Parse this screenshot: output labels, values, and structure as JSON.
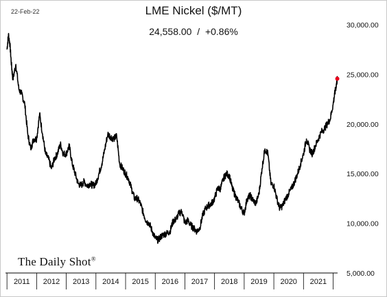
{
  "header": {
    "date": "22-Feb-22",
    "title": "LME Nickel ($/MT)",
    "last_value": "24,558.00",
    "separator": "/",
    "change": "+0.86%"
  },
  "branding": {
    "logo_text": "The Daily Shot",
    "logo_mark": "®"
  },
  "colors": {
    "line": "#000000",
    "last_point": "#e8001c",
    "axis": "#000000",
    "background": "#ffffff"
  },
  "chart_data": {
    "type": "line",
    "title": "LME Nickel ($/MT)",
    "xlabel": "",
    "ylabel": "",
    "xlim": [
      2010.95,
      2022.15
    ],
    "ylim": [
      5000,
      30000
    ],
    "grid": false,
    "y_axis_side": "right",
    "y_ticks": [
      5000,
      10000,
      15000,
      20000,
      25000,
      30000
    ],
    "y_tick_labels": [
      "5,000.00",
      "10,000.00",
      "15,000.00",
      "20,000.00",
      "25,000.00",
      "30,000.00"
    ],
    "x_tick_labels": [
      "2011",
      "2012",
      "2013",
      "2014",
      "2015",
      "2016",
      "2017",
      "2018",
      "2019",
      "2020",
      "2021"
    ],
    "series": [
      {
        "x": [
          2011.0,
          2011.05,
          2011.1,
          2011.15,
          2011.2,
          2011.3,
          2011.4,
          2011.5,
          2011.6,
          2011.7,
          2011.8,
          2011.9,
          2012.0,
          2012.1,
          2012.2,
          2012.3,
          2012.4,
          2012.5,
          2012.6,
          2012.7,
          2012.8,
          2012.9,
          2013.0,
          2013.1,
          2013.2,
          2013.3,
          2013.4,
          2013.5,
          2013.6,
          2013.7,
          2013.8,
          2013.9,
          2014.0,
          2014.1,
          2014.2,
          2014.3,
          2014.4,
          2014.5,
          2014.6,
          2014.7,
          2014.8,
          2014.9,
          2015.0,
          2015.1,
          2015.2,
          2015.3,
          2015.4,
          2015.5,
          2015.6,
          2015.7,
          2015.8,
          2015.9,
          2016.0,
          2016.1,
          2016.2,
          2016.3,
          2016.4,
          2016.5,
          2016.6,
          2016.7,
          2016.8,
          2016.9,
          2017.0,
          2017.1,
          2017.2,
          2017.3,
          2017.4,
          2017.5,
          2017.6,
          2017.7,
          2017.8,
          2017.9,
          2018.0,
          2018.1,
          2018.2,
          2018.3,
          2018.4,
          2018.5,
          2018.6,
          2018.7,
          2018.8,
          2018.9,
          2019.0,
          2019.1,
          2019.2,
          2019.3,
          2019.4,
          2019.5,
          2019.6,
          2019.7,
          2019.8,
          2019.9,
          2020.0,
          2020.1,
          2020.2,
          2020.3,
          2020.4,
          2020.5,
          2020.6,
          2020.7,
          2020.8,
          2020.9,
          2021.0,
          2021.1,
          2021.2,
          2021.3,
          2021.4,
          2021.5,
          2021.6,
          2021.7,
          2021.8,
          2021.9,
          2022.0,
          2022.05,
          2022.1,
          2022.14
        ],
        "y": [
          27500,
          29000,
          28000,
          26000,
          24500,
          26000,
          23500,
          23000,
          22000,
          19000,
          17500,
          18500,
          18500,
          21000,
          19000,
          17000,
          16500,
          15500,
          16500,
          17000,
          18000,
          17000,
          17000,
          17800,
          16000,
          15000,
          14000,
          13800,
          14200,
          13800,
          14000,
          13800,
          14000,
          15000,
          16000,
          17500,
          19000,
          18700,
          18500,
          18800,
          16000,
          15500,
          15000,
          14500,
          13500,
          12500,
          12500,
          12000,
          11000,
          10200,
          10000,
          9200,
          8500,
          8300,
          8700,
          8900,
          9000,
          9200,
          10200,
          10400,
          11000,
          11200,
          10000,
          10300,
          9800,
          9500,
          9200,
          9500,
          10800,
          11500,
          11800,
          12000,
          12500,
          13500,
          13500,
          14500,
          15000,
          14800,
          13500,
          12800,
          12200,
          11500,
          11000,
          12500,
          12800,
          12300,
          12000,
          13000,
          15500,
          17500,
          17000,
          14000,
          13800,
          12500,
          11500,
          11800,
          12500,
          13000,
          13500,
          14200,
          15000,
          16000,
          17000,
          18500,
          17500,
          17000,
          17800,
          18500,
          19200,
          19500,
          20000,
          20500,
          22000,
          23000,
          23800,
          24558
        ]
      }
    ],
    "last_point": {
      "x": 2022.14,
      "y": 24558
    }
  }
}
